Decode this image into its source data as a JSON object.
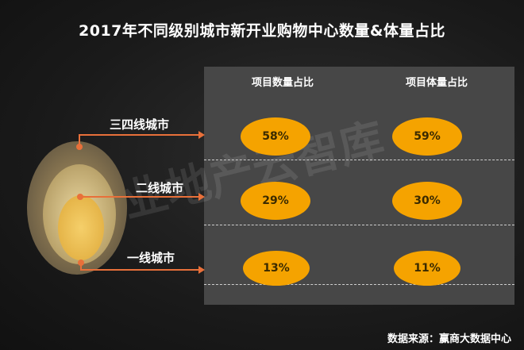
{
  "chart_data": {
    "type": "table",
    "title": "2017年不同级别城市新开业购物中心数量&体量占比",
    "columns": [
      "项目数量占比",
      "项目体量占比"
    ],
    "rows": [
      {
        "label": "三四线城市",
        "values": [
          "58%",
          "59%"
        ]
      },
      {
        "label": "二线城市",
        "values": [
          "29%",
          "30%"
        ]
      },
      {
        "label": "一线城市",
        "values": [
          "13%",
          "11%"
        ]
      }
    ]
  },
  "source": "数据来源：赢商大数据中心",
  "colors": {
    "pill": "#f5a300",
    "connector": "#e8703a",
    "panel": "#474747"
  }
}
